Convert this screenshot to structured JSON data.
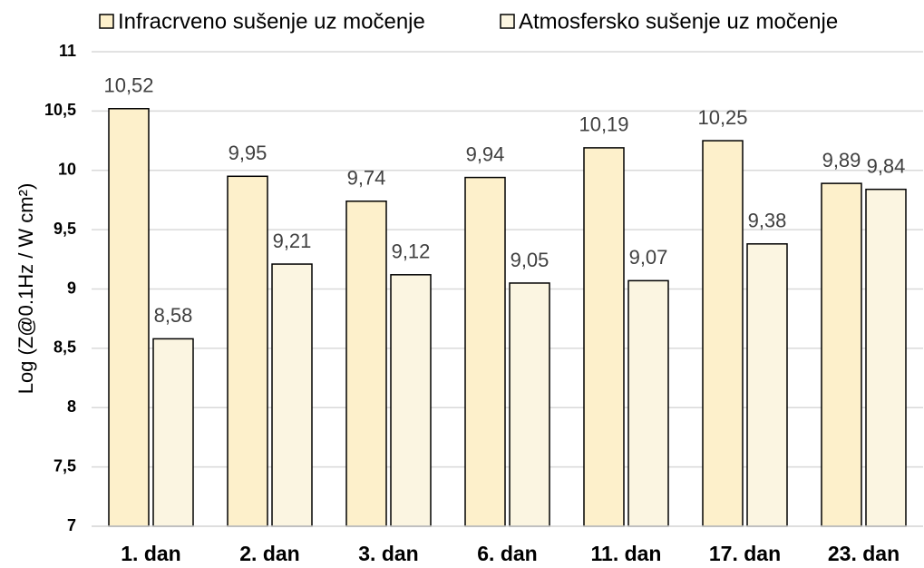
{
  "chart_data": {
    "type": "bar",
    "y_label": "Log (Z@0.1Hz / W cm²)",
    "categories": [
      "1. dan",
      "2. dan",
      "3. dan",
      "6. dan",
      "11. dan",
      "17. dan",
      "23. dan"
    ],
    "series": [
      {
        "name": "Infracrveno sušenje uz močenje",
        "color": "#fdf0cb",
        "values": [
          10.52,
          9.95,
          9.74,
          9.94,
          10.19,
          10.25,
          9.89
        ],
        "value_labels": [
          "10,52",
          "9,95",
          "9,74",
          "9,94",
          "10,19",
          "10,25",
          "9,89"
        ]
      },
      {
        "name": "Atmosfersko sušenje uz močenje",
        "color": "#fbf5e1",
        "values": [
          8.58,
          9.21,
          9.12,
          9.05,
          9.07,
          9.38,
          9.84
        ],
        "value_labels": [
          "8,58",
          "9,21",
          "9,12",
          "9,05",
          "9,07",
          "9,38",
          "9,84"
        ]
      }
    ],
    "ylim": [
      7,
      11
    ],
    "yticks": [
      7,
      {
        "value": 7.5,
        "label": "7,5"
      },
      8,
      {
        "value": 8.5,
        "label": "8,5"
      },
      9,
      {
        "value": 9.5,
        "label": "9,5"
      },
      10,
      {
        "value": 10.5,
        "label": "10,5"
      },
      11
    ],
    "grid": true
  }
}
